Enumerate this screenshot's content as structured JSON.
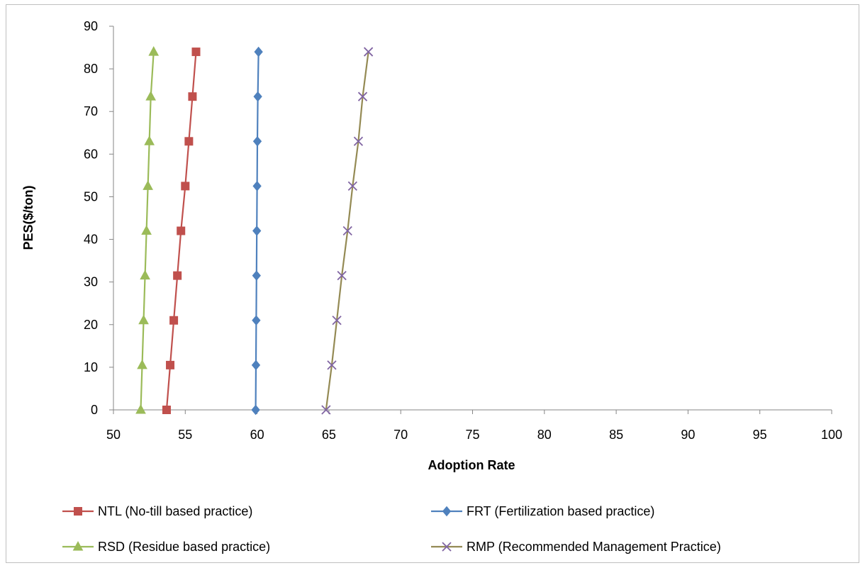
{
  "chart_data": {
    "type": "line",
    "title": "",
    "xlabel": "Adoption Rate",
    "ylabel": "PES($/ton)",
    "xlim": [
      50,
      100
    ],
    "ylim": [
      0,
      90
    ],
    "xticks": [
      "50",
      "55",
      "60",
      "65",
      "70",
      "75",
      "80",
      "85",
      "90",
      "95",
      "100"
    ],
    "yticks": [
      "0",
      "10",
      "20",
      "30",
      "40",
      "50",
      "60",
      "70",
      "80",
      "90"
    ],
    "grid": false,
    "legend_position": "bottom",
    "y_values": [
      0,
      10.5,
      21,
      31.5,
      42,
      52.5,
      63,
      73.5,
      84
    ],
    "series": [
      {
        "name": "NTL (No-till based practice)",
        "color": "#c0504d",
        "marker": "square",
        "x": [
          53.7,
          53.95,
          54.2,
          54.45,
          54.7,
          55.0,
          55.25,
          55.5,
          55.75
        ]
      },
      {
        "name": "FRT (Fertilization based practice)",
        "color": "#4f81bd",
        "marker": "diamond",
        "x": [
          59.9,
          59.92,
          59.94,
          59.96,
          59.98,
          60.0,
          60.02,
          60.05,
          60.1
        ]
      },
      {
        "name": "RSD (Residue based practice)",
        "color": "#9bbb59",
        "marker": "triangle",
        "x": [
          51.9,
          52.0,
          52.1,
          52.2,
          52.3,
          52.4,
          52.5,
          52.6,
          52.8
        ]
      },
      {
        "name": "RMP (Recommended Management Practice)",
        "color": "#8064a2",
        "line_color": "#948a54",
        "marker": "x",
        "x": [
          64.8,
          65.2,
          65.55,
          65.9,
          66.3,
          66.65,
          67.05,
          67.35,
          67.75
        ]
      }
    ]
  }
}
